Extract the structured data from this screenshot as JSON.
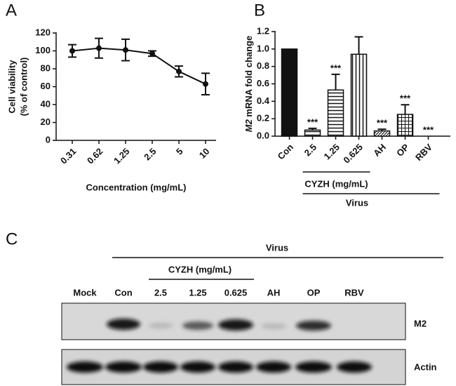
{
  "chart_data": [
    {
      "type": "line",
      "panel": "A",
      "categories": [
        "0.31",
        "0.62",
        "1.25",
        "2.5",
        "5",
        "10"
      ],
      "values": [
        100,
        103,
        101,
        97,
        77,
        63
      ],
      "errors": [
        7,
        11,
        12,
        3,
        6,
        12
      ],
      "color": "#111111",
      "ylim": [
        0,
        120
      ],
      "yticks": [
        0,
        20,
        40,
        60,
        80,
        100,
        120
      ],
      "xlabel": "Concentration (mg/mL)",
      "ylabel": [
        "Cell viability",
        "(% of control)"
      ]
    },
    {
      "type": "bar",
      "panel": "B",
      "categories": [
        "Con",
        "2.5",
        "1.25",
        "0.625",
        "AH",
        "OP",
        "RBV"
      ],
      "values": [
        1.0,
        0.07,
        0.53,
        0.94,
        0.06,
        0.25,
        0.0
      ],
      "errors": [
        0,
        0.02,
        0.18,
        0.2,
        0.02,
        0.11,
        0
      ],
      "patterns": [
        "solid",
        "hlines",
        "hlines",
        "vlines",
        "diag",
        "grid",
        "none"
      ],
      "annotations": [
        null,
        "***",
        "***",
        null,
        "***",
        "***",
        "***"
      ],
      "color": "#111111",
      "ylim": [
        0,
        1.2
      ],
      "yticks": [
        {
          "value": 0,
          "label": "0.0"
        },
        0.2,
        0.4,
        0.6,
        0.8,
        {
          "value": 1,
          "label": "1.0"
        },
        1.2
      ],
      "ylabel": [
        "M2",
        "mRNA fold change"
      ],
      "group_labels": [
        "CYZH (mg/mL)",
        "Virus"
      ]
    }
  ],
  "blot": {
    "panel": "C",
    "header": "Virus",
    "subheader": "CYZH (mg/mL)",
    "lanes": [
      "Mock",
      "Con",
      "2.5",
      "1.25",
      "0.625",
      "AH",
      "OP",
      "RBV"
    ],
    "rows": [
      "M2",
      "Actin"
    ]
  }
}
